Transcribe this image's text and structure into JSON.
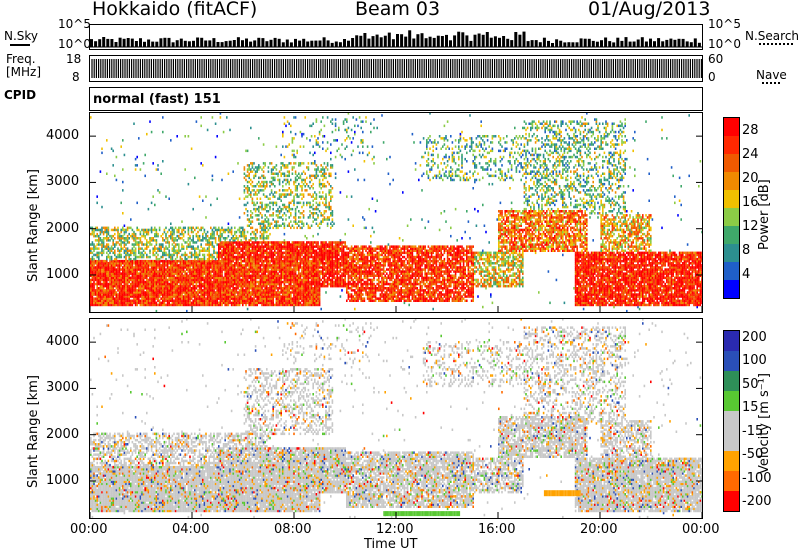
{
  "header": {
    "station": "Hokkaido (fitACF)",
    "beam": "Beam 03",
    "date": "01/Aug/2013"
  },
  "left_labels": {
    "nsky": "N.Sky",
    "freq": "Freq.",
    "freq_unit": "[MHz]",
    "cpid": "CPID"
  },
  "right_labels": {
    "nsearch": "N.Search",
    "nave": "Nave"
  },
  "mini_ticks": {
    "noise_left_top": "10^5",
    "noise_left_bottom": "10^0",
    "noise_right_top": "10^5",
    "noise_right_bottom": "10^0",
    "freq_left_top": "18",
    "freq_left_bottom": "8",
    "nave_right_top": "60",
    "nave_right_bottom": "0"
  },
  "cpid_text": "normal (fast) 151",
  "time_axis": {
    "label": "Time UT",
    "ticks": [
      "00:00",
      "04:00",
      "08:00",
      "12:00",
      "16:00",
      "20:00",
      "00:00"
    ]
  },
  "colors": {
    "power": [
      "#0000ff",
      "#1f5fc8",
      "#2c8f8f",
      "#3fa86a",
      "#8ccc46",
      "#f0c000",
      "#f08a00",
      "#f05a00",
      "#ff2800",
      "#ff0000"
    ],
    "velocity": [
      "#ff0000",
      "#ff6a00",
      "#ffa200",
      "#c8c8c8",
      "#c8c8c8",
      "#58c832",
      "#2e8f58",
      "#2a4fb8",
      "#2a2ab0"
    ]
  },
  "chart_data": [
    {
      "type": "heatmap",
      "name": "power",
      "ylabel": "Slant Range [km]",
      "yticks": [
        1000,
        2000,
        3000,
        4000
      ],
      "ylim": [
        200,
        4500
      ],
      "xlim_hours": [
        0,
        24
      ],
      "colorbar_label": "Power [dB]",
      "colorbar_ticks": [
        "4",
        "8",
        "12",
        "16",
        "20",
        "24",
        "28"
      ],
      "colorbar_range": [
        0,
        30
      ]
    },
    {
      "type": "heatmap",
      "name": "velocity",
      "ylabel": "Slant Range [km]",
      "yticks": [
        1000,
        2000,
        3000,
        4000
      ],
      "ylim": [
        200,
        4500
      ],
      "xlim_hours": [
        0,
        24
      ],
      "colorbar_label": "Velocity [m s⁻¹]",
      "colorbar_ticks": [
        "200",
        "100",
        "50",
        "15",
        "-15",
        "-50",
        "-100",
        "-200"
      ]
    }
  ]
}
